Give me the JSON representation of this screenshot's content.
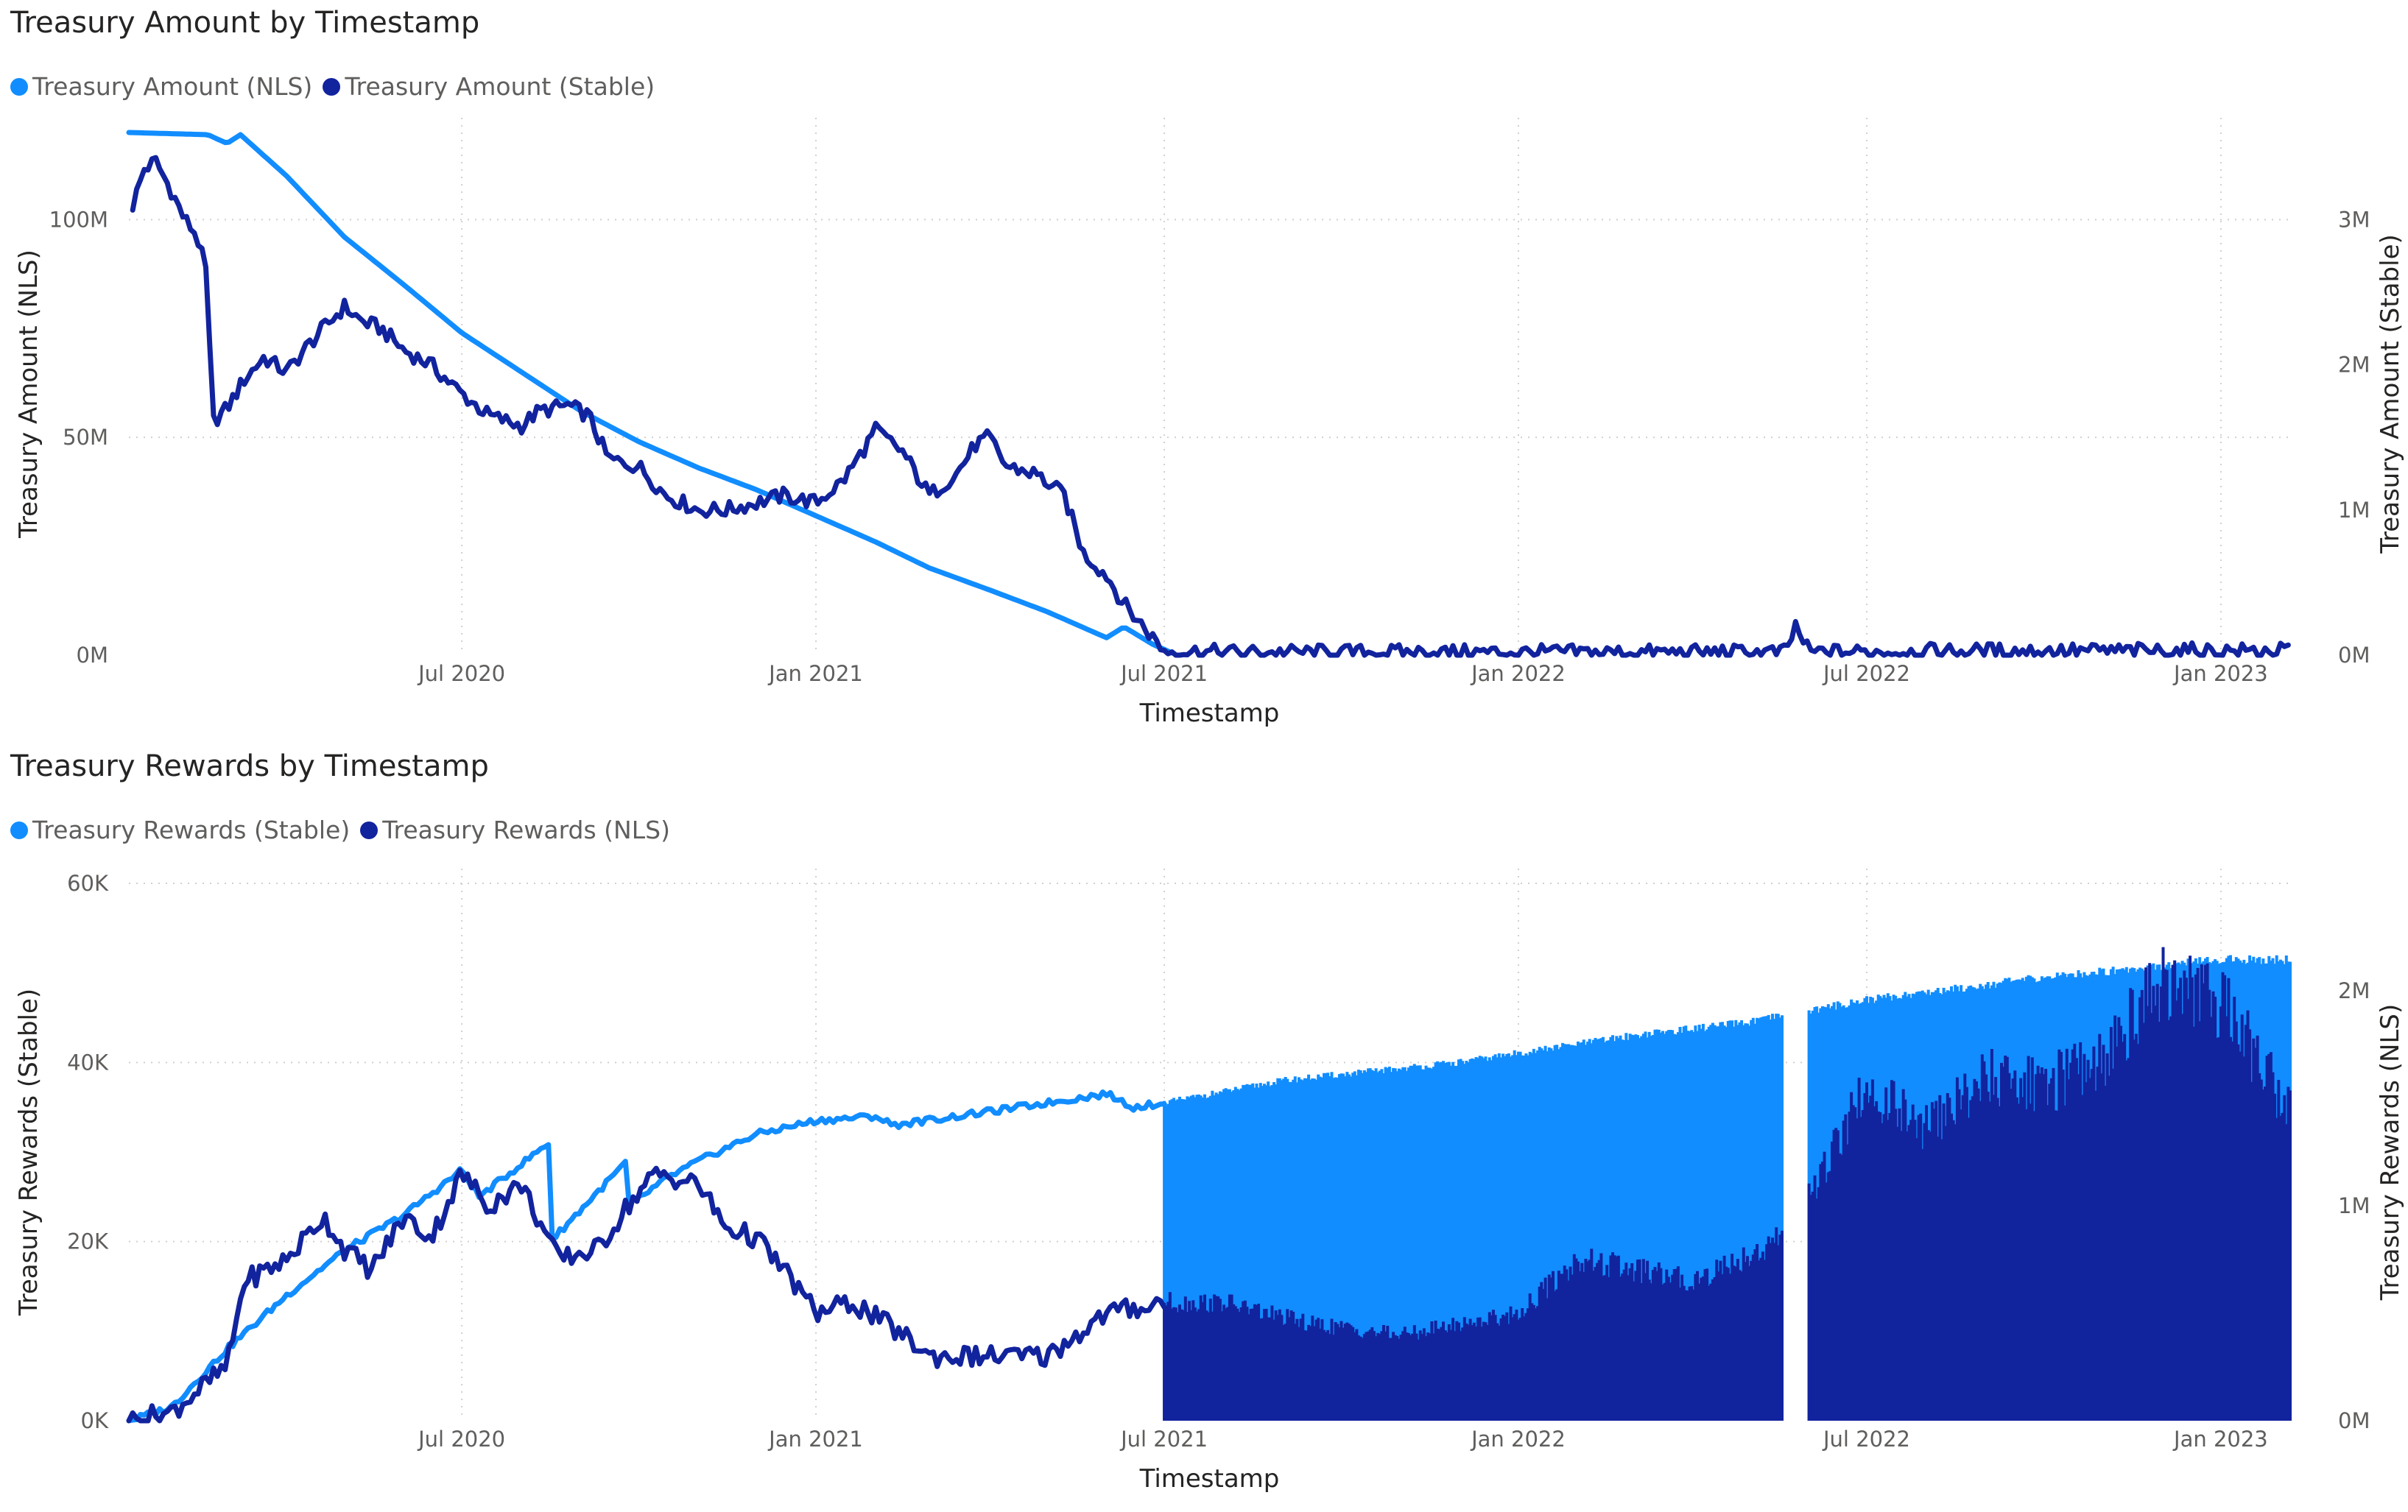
{
  "colors": {
    "light": "#118dff",
    "dark": "#12239e"
  },
  "chart_data": [
    {
      "type": "line",
      "title": "Treasury Amount by Timestamp",
      "xlabel": "Timestamp",
      "ylabel": "Treasury Amount (NLS)",
      "y2label": "Treasury Amount (Stable)",
      "x_range": [
        "2020-01-10",
        "2023-02-06"
      ],
      "x_ticks": [
        {
          "date": "2020-07-01",
          "label": "Jul 2020"
        },
        {
          "date": "2021-01-01",
          "label": "Jan 2021"
        },
        {
          "date": "2021-07-01",
          "label": "Jul 2021"
        },
        {
          "date": "2022-01-01",
          "label": "Jan 2022"
        },
        {
          "date": "2022-07-01",
          "label": "Jul 2022"
        },
        {
          "date": "2023-01-01",
          "label": "Jan 2023"
        }
      ],
      "y_ticks": [
        {
          "v": 0,
          "label": "0M"
        },
        {
          "v": 50000000,
          "label": "50M"
        },
        {
          "v": 100000000,
          "label": "100M"
        }
      ],
      "ylim": [
        0,
        120000000
      ],
      "y2_ticks": [
        {
          "v": 0,
          "label": "0M"
        },
        {
          "v": 1000000,
          "label": "1M"
        },
        {
          "v": 2000000,
          "label": "2M"
        },
        {
          "v": 3000000,
          "label": "3M"
        }
      ],
      "y2lim": [
        0,
        3600000
      ],
      "legend": {
        "position": "top-left",
        "entries": [
          "Treasury Amount (NLS)",
          "Treasury Amount (Stable)"
        ]
      },
      "grid": true,
      "series": [
        {
          "name": "Treasury Amount (NLS)",
          "axis": "left",
          "color": "#118dff",
          "style": "line",
          "points": [
            [
              "2020-01-10",
              120000000
            ],
            [
              "2020-02-20",
              119500000
            ],
            [
              "2020-03-01",
              117500000
            ],
            [
              "2020-03-08",
              119500000
            ],
            [
              "2020-04-01",
              110000000
            ],
            [
              "2020-05-01",
              96000000
            ],
            [
              "2020-06-01",
              85000000
            ],
            [
              "2020-07-01",
              74000000
            ],
            [
              "2020-08-01",
              65000000
            ],
            [
              "2020-09-01",
              56000000
            ],
            [
              "2020-10-01",
              49000000
            ],
            [
              "2020-11-01",
              43000000
            ],
            [
              "2020-12-01",
              38000000
            ],
            [
              "2021-01-01",
              32000000
            ],
            [
              "2021-02-01",
              26000000
            ],
            [
              "2021-03-01",
              20000000
            ],
            [
              "2021-04-01",
              15000000
            ],
            [
              "2021-05-01",
              10000000
            ],
            [
              "2021-06-01",
              4000000
            ],
            [
              "2021-06-10",
              6500000
            ],
            [
              "2021-06-25",
              2500000
            ],
            [
              "2021-07-05",
              500000
            ]
          ]
        },
        {
          "name": "Treasury Amount (Stable)",
          "axis": "right",
          "color": "#12239e",
          "style": "line",
          "points": [
            [
              "2020-01-12",
              3100000
            ],
            [
              "2020-01-18",
              3350000
            ],
            [
              "2020-01-24",
              3400000
            ],
            [
              "2020-02-01",
              3200000
            ],
            [
              "2020-02-08",
              3000000
            ],
            [
              "2020-02-14",
              2900000
            ],
            [
              "2020-02-20",
              2600000
            ],
            [
              "2020-02-22",
              1600000
            ],
            [
              "2020-03-01",
              1700000
            ],
            [
              "2020-03-10",
              1900000
            ],
            [
              "2020-03-20",
              2050000
            ],
            [
              "2020-04-01",
              1950000
            ],
            [
              "2020-04-10",
              2100000
            ],
            [
              "2020-04-20",
              2250000
            ],
            [
              "2020-05-01",
              2400000
            ],
            [
              "2020-05-10",
              2300000
            ],
            [
              "2020-05-20",
              2250000
            ],
            [
              "2020-06-01",
              2100000
            ],
            [
              "2020-06-15",
              2000000
            ],
            [
              "2020-07-01",
              1800000
            ],
            [
              "2020-07-15",
              1650000
            ],
            [
              "2020-08-01",
              1580000
            ],
            [
              "2020-08-10",
              1680000
            ],
            [
              "2020-08-25",
              1720000
            ],
            [
              "2020-09-05",
              1650000
            ],
            [
              "2020-09-15",
              1350000
            ],
            [
              "2020-10-01",
              1300000
            ],
            [
              "2020-10-15",
              1100000
            ],
            [
              "2020-11-01",
              1000000
            ],
            [
              "2020-11-15",
              1000000
            ],
            [
              "2020-12-01",
              1050000
            ],
            [
              "2020-12-15",
              1100000
            ],
            [
              "2021-01-01",
              1050000
            ],
            [
              "2021-01-15",
              1200000
            ],
            [
              "2021-01-25",
              1400000
            ],
            [
              "2021-02-01",
              1550000
            ],
            [
              "2021-02-15",
              1400000
            ],
            [
              "2021-03-01",
              1100000
            ],
            [
              "2021-03-15",
              1250000
            ],
            [
              "2021-03-25",
              1450000
            ],
            [
              "2021-04-01",
              1500000
            ],
            [
              "2021-04-10",
              1300000
            ],
            [
              "2021-04-25",
              1250000
            ],
            [
              "2021-05-10",
              1100000
            ],
            [
              "2021-05-20",
              700000
            ],
            [
              "2021-06-01",
              550000
            ],
            [
              "2021-06-10",
              350000
            ],
            [
              "2021-06-20",
              200000
            ],
            [
              "2021-07-01",
              30000
            ],
            [
              "2021-08-01",
              20000
            ],
            [
              "2022-01-01",
              20000
            ],
            [
              "2022-05-20",
              20000
            ],
            [
              "2022-05-25",
              200000
            ],
            [
              "2022-06-01",
              20000
            ],
            [
              "2022-09-01",
              30000
            ],
            [
              "2023-02-06",
              30000
            ]
          ]
        }
      ]
    },
    {
      "type": "line",
      "title": "Treasury Rewards by Timestamp",
      "xlabel": "Timestamp",
      "ylabel": "Treasury Rewards (Stable)",
      "y2label": "Treasury Rewards (NLS)",
      "x_range": [
        "2020-01-10",
        "2023-02-06"
      ],
      "x_ticks": [
        {
          "date": "2020-07-01",
          "label": "Jul 2020"
        },
        {
          "date": "2021-01-01",
          "label": "Jan 2021"
        },
        {
          "date": "2021-07-01",
          "label": "Jul 2021"
        },
        {
          "date": "2022-01-01",
          "label": "Jan 2022"
        },
        {
          "date": "2022-07-01",
          "label": "Jul 2022"
        },
        {
          "date": "2023-01-01",
          "label": "Jan 2023"
        }
      ],
      "y_ticks": [
        {
          "v": 0,
          "label": "0K"
        },
        {
          "v": 20000,
          "label": "20K"
        },
        {
          "v": 40000,
          "label": "40K"
        },
        {
          "v": 60000,
          "label": "60K"
        }
      ],
      "ylim": [
        0,
        60000
      ],
      "y2_ticks": [
        {
          "v": 0,
          "label": "0M"
        },
        {
          "v": 1000000,
          "label": "1M"
        },
        {
          "v": 2000000,
          "label": "2M"
        }
      ],
      "y2lim": [
        0,
        2500000
      ],
      "legend": {
        "position": "top-left",
        "entries": [
          "Treasury Rewards (Stable)",
          "Treasury Rewards (NLS)"
        ]
      },
      "grid": true,
      "series": [
        {
          "name": "Treasury Rewards (Stable)",
          "axis": "left",
          "color": "#118dff",
          "style": "line-then-fill",
          "fill_from": "2021-07-01",
          "points": [
            [
              "2020-01-10",
              0
            ],
            [
              "2020-02-01",
              1500
            ],
            [
              "2020-03-01",
              8000
            ],
            [
              "2020-04-01",
              14000
            ],
            [
              "2020-05-01",
              19000
            ],
            [
              "2020-06-01",
              23000
            ],
            [
              "2020-07-01",
              28000
            ],
            [
              "2020-07-10",
              25000
            ],
            [
              "2020-08-15",
              31000
            ],
            [
              "2020-08-16",
              20000
            ],
            [
              "2020-09-25",
              29000
            ],
            [
              "2020-09-26",
              24000
            ],
            [
              "2020-10-15",
              27000
            ],
            [
              "2020-11-01",
              29000
            ],
            [
              "2020-12-01",
              32000
            ],
            [
              "2021-01-01",
              33500
            ],
            [
              "2021-02-01",
              34000
            ],
            [
              "2021-02-10",
              33000
            ],
            [
              "2021-04-01",
              34500
            ],
            [
              "2021-06-01",
              36500
            ],
            [
              "2021-06-15",
              35000
            ],
            [
              "2021-07-01",
              35500
            ],
            [
              "2021-09-01",
              38000
            ],
            [
              "2021-12-01",
              40000
            ],
            [
              "2022-03-01",
              43000
            ],
            [
              "2022-05-01",
              44500
            ],
            [
              "2022-07-01",
              47000
            ],
            [
              "2022-10-01",
              49500
            ],
            [
              "2023-01-01",
              51500
            ],
            [
              "2023-02-06",
              51500
            ]
          ]
        },
        {
          "name": "Treasury Rewards (NLS)",
          "axis": "right",
          "color": "#12239e",
          "style": "line-then-fill",
          "fill_from": "2021-07-01",
          "points": [
            [
              "2020-01-10",
              0
            ],
            [
              "2020-02-01",
              40000
            ],
            [
              "2020-03-01",
              250000
            ],
            [
              "2020-03-10",
              650000
            ],
            [
              "2020-04-01",
              750000
            ],
            [
              "2020-04-20",
              950000
            ],
            [
              "2020-05-01",
              800000
            ],
            [
              "2020-05-15",
              700000
            ],
            [
              "2020-06-01",
              950000
            ],
            [
              "2020-06-15",
              850000
            ],
            [
              "2020-07-01",
              1150000
            ],
            [
              "2020-07-15",
              1000000
            ],
            [
              "2020-08-01",
              1100000
            ],
            [
              "2020-08-20",
              750000
            ],
            [
              "2020-09-10",
              800000
            ],
            [
              "2020-09-25",
              1000000
            ],
            [
              "2020-10-10",
              1150000
            ],
            [
              "2020-11-01",
              1100000
            ],
            [
              "2020-11-15",
              900000
            ],
            [
              "2020-12-01",
              850000
            ],
            [
              "2020-12-20",
              650000
            ],
            [
              "2021-01-01",
              500000
            ],
            [
              "2021-01-20",
              550000
            ],
            [
              "2021-02-15",
              400000
            ],
            [
              "2021-03-01",
              300000
            ],
            [
              "2021-04-01",
              300000
            ],
            [
              "2021-05-01",
              300000
            ],
            [
              "2021-06-01",
              500000
            ],
            [
              "2021-07-01",
              550000
            ],
            [
              "2021-08-01",
              550000
            ],
            [
              "2021-09-15",
              450000
            ],
            [
              "2021-11-01",
              400000
            ],
            [
              "2022-01-01",
              500000
            ],
            [
              "2022-02-01",
              750000
            ],
            [
              "2022-04-01",
              650000
            ],
            [
              "2022-05-20",
              850000
            ],
            [
              "2022-06-01",
              1050000
            ],
            [
              "2022-07-01",
              1550000
            ],
            [
              "2022-08-01",
              1350000
            ],
            [
              "2022-09-01",
              1600000
            ],
            [
              "2022-10-01",
              1550000
            ],
            [
              "2022-11-01",
              1700000
            ],
            [
              "2022-12-01",
              2050000
            ],
            [
              "2023-01-01",
              1950000
            ],
            [
              "2023-02-06",
              1450000
            ]
          ]
        }
      ]
    }
  ]
}
